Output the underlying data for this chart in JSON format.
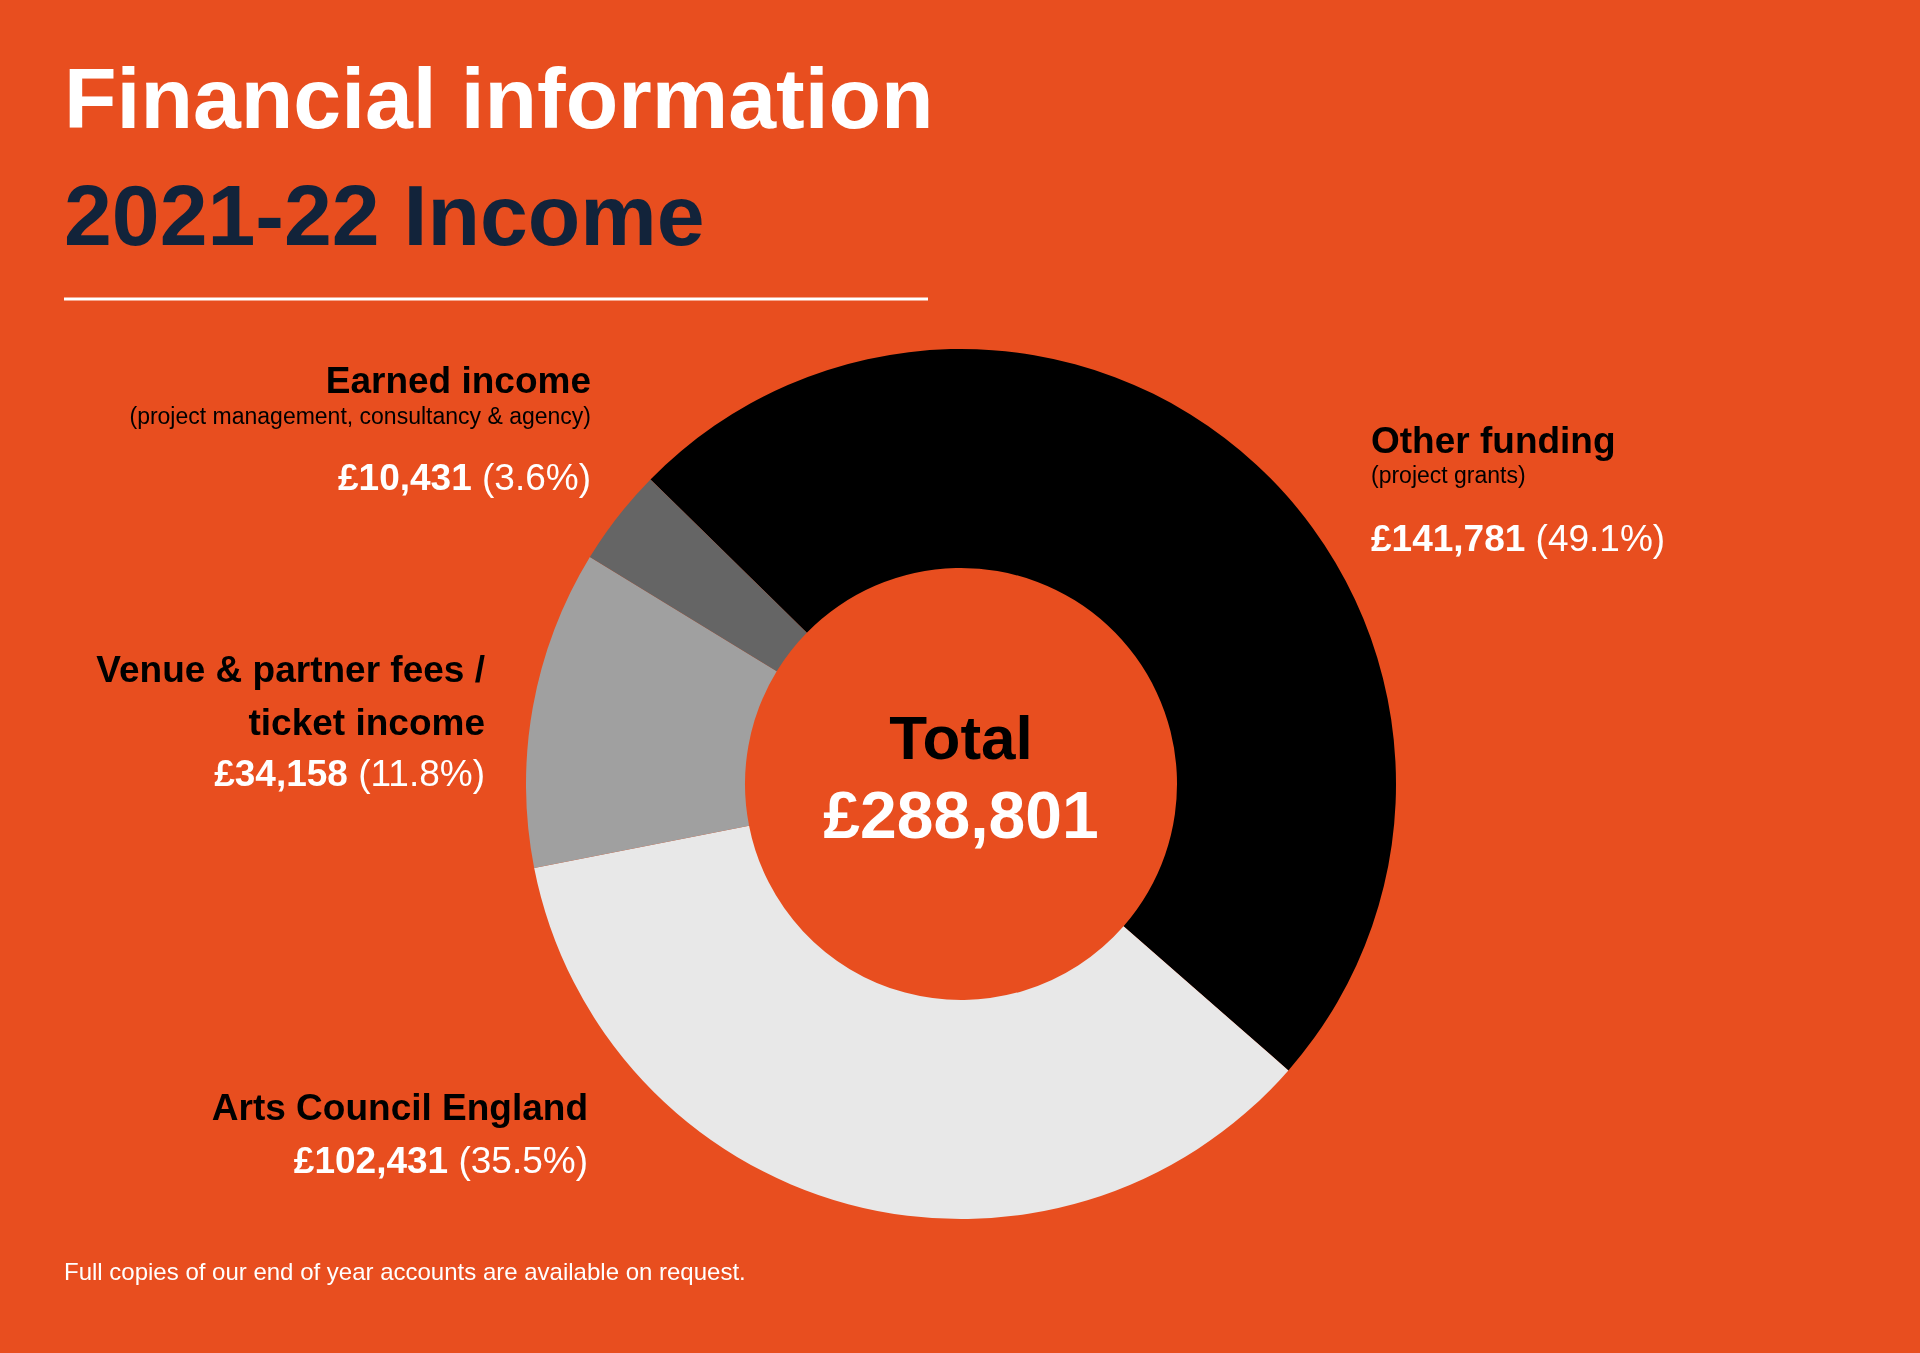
{
  "chart_data": {
    "type": "donut",
    "title": "Financial information",
    "subtitle": "2021-22 Income",
    "categories": [
      "Other funding",
      "Arts Council England",
      "Venue & partner fees / ticket income",
      "Earned income"
    ],
    "values": [
      141781,
      102431,
      34158,
      10431
    ],
    "colors": [
      "#000000",
      "#e8e8e8",
      "#a0a0a0",
      "#656565"
    ],
    "value_labels": [
      "£141,781 (49.1%)",
      "£102,431 (35.5%)",
      "£34,158 (11.8%)",
      "£10,431 (3.6%)"
    ],
    "annotations": [
      {
        "text": "(project grants)",
        "x": "Other funding"
      },
      {
        "text": "(project management, consultancy & agency)",
        "x": "Earned income"
      },
      "Total",
      "£288,801",
      "Full copies of our end of year accounts are available on request."
    ]
  }
}
